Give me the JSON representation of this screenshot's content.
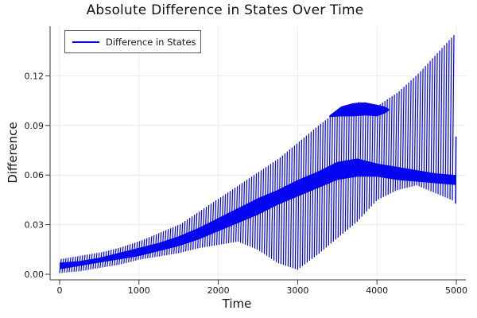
{
  "title": "Absolute Difference in States Over Time",
  "legend": {
    "label": "Difference in States",
    "line_color": "#0000ee"
  },
  "axes": {
    "x": {
      "label": "Time",
      "ticks": [
        0,
        1000,
        2000,
        3000,
        4000,
        5000
      ]
    },
    "y": {
      "label": "Difference",
      "ticks": [
        0.0,
        0.03,
        0.06,
        0.09,
        0.12
      ],
      "tick_decimals": 2
    }
  },
  "colors": {
    "series": "#0505f2",
    "band": "#0404ee",
    "grid": "#ececec",
    "axis": "#3a3a3a",
    "tick_label": "#1a1a1a",
    "background": "#ffffff",
    "legend_border": "#585858"
  },
  "chart_data": {
    "type": "line",
    "title": "Absolute Difference in States Over Time",
    "xlabel": "Time",
    "ylabel": "Difference",
    "xlim": [
      -120,
      5110
    ],
    "ylim": [
      -0.0035,
      0.15
    ],
    "grid": true,
    "legend_position": "top-left",
    "series": [
      {
        "name": "Difference in States",
        "color": "#0000ff",
        "description": "Rapidly oscillating absolute difference; sweeps between lower and upper envelopes roughly every 30 time units, with a dense solid band between dense_band_lower and dense_band_upper and a solid plateau blob near t=3400-4150.",
        "oscillation_period_t": 30,
        "envelope_t": [
          0,
          250,
          500,
          750,
          1000,
          1250,
          1500,
          1750,
          2000,
          2250,
          2500,
          2750,
          3000,
          3250,
          3500,
          3750,
          4000,
          4250,
          4500,
          4750,
          5000
        ],
        "envelope_lower": [
          0.001,
          0.002,
          0.004,
          0.006,
          0.009,
          0.011,
          0.013,
          0.016,
          0.018,
          0.02,
          0.015,
          0.007,
          0.003,
          0.012,
          0.022,
          0.032,
          0.045,
          0.051,
          0.054,
          0.049,
          0.044
        ],
        "envelope_upper": [
          0.009,
          0.011,
          0.013,
          0.016,
          0.02,
          0.025,
          0.03,
          0.038,
          0.046,
          0.054,
          0.062,
          0.07,
          0.08,
          0.09,
          0.099,
          0.104,
          0.102,
          0.11,
          0.121,
          0.134,
          0.147
        ],
        "dense_band_lower": [
          0.003,
          0.005,
          0.007,
          0.009,
          0.011,
          0.014,
          0.017,
          0.021,
          0.026,
          0.031,
          0.036,
          0.042,
          0.047,
          0.052,
          0.057,
          0.059,
          0.059,
          0.057,
          0.056,
          0.055,
          0.054
        ],
        "dense_band_upper": [
          0.007,
          0.008,
          0.01,
          0.013,
          0.016,
          0.019,
          0.023,
          0.028,
          0.034,
          0.04,
          0.046,
          0.051,
          0.057,
          0.062,
          0.068,
          0.07,
          0.067,
          0.065,
          0.063,
          0.061,
          0.06
        ],
        "plateau_t": [
          3400,
          3550,
          3700,
          3850,
          4000,
          4100,
          4150
        ],
        "plateau_top": [
          0.096,
          0.1015,
          0.1035,
          0.104,
          0.1025,
          0.1013,
          0.1
        ],
        "plateau_bottom": [
          0.095,
          0.0955,
          0.0955,
          0.096,
          0.0955,
          0.0973,
          0.099
        ],
        "final_segment": {
          "t": 5000,
          "from": 0.043,
          "to": 0.083
        }
      }
    ]
  }
}
